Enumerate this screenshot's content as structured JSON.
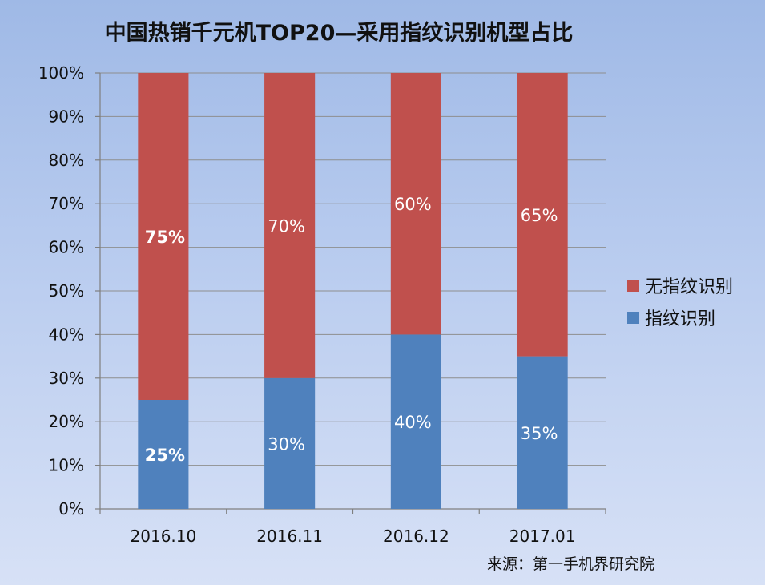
{
  "chart_data": {
    "type": "bar",
    "stacked": true,
    "percent": true,
    "title": "中国热销千元机TOP20—采用指纹识别机型占比",
    "categories": [
      "2016.10",
      "2016.11",
      "2016.12",
      "2017.01"
    ],
    "series": [
      {
        "name": "指纹识别",
        "values": [
          25,
          30,
          40,
          35
        ],
        "color": "#4f81bd",
        "labels": [
          "25%",
          "30%",
          "40%",
          "35%"
        ],
        "bold": [
          true,
          false,
          false,
          false
        ]
      },
      {
        "name": "无指纹识别",
        "values": [
          75,
          70,
          60,
          65
        ],
        "color": "#c0504d",
        "labels": [
          "75%",
          "70%",
          "60%",
          "65%"
        ],
        "bold": [
          true,
          false,
          false,
          false
        ]
      }
    ],
    "ylim": [
      0,
      100
    ],
    "yticks": [
      "0%",
      "10%",
      "20%",
      "30%",
      "40%",
      "50%",
      "60%",
      "70%",
      "80%",
      "90%",
      "100%"
    ],
    "grid": true,
    "legend_position": "right",
    "legend_order": [
      "无指纹识别",
      "指纹识别"
    ]
  },
  "source": "来源：第一手机界研究院"
}
